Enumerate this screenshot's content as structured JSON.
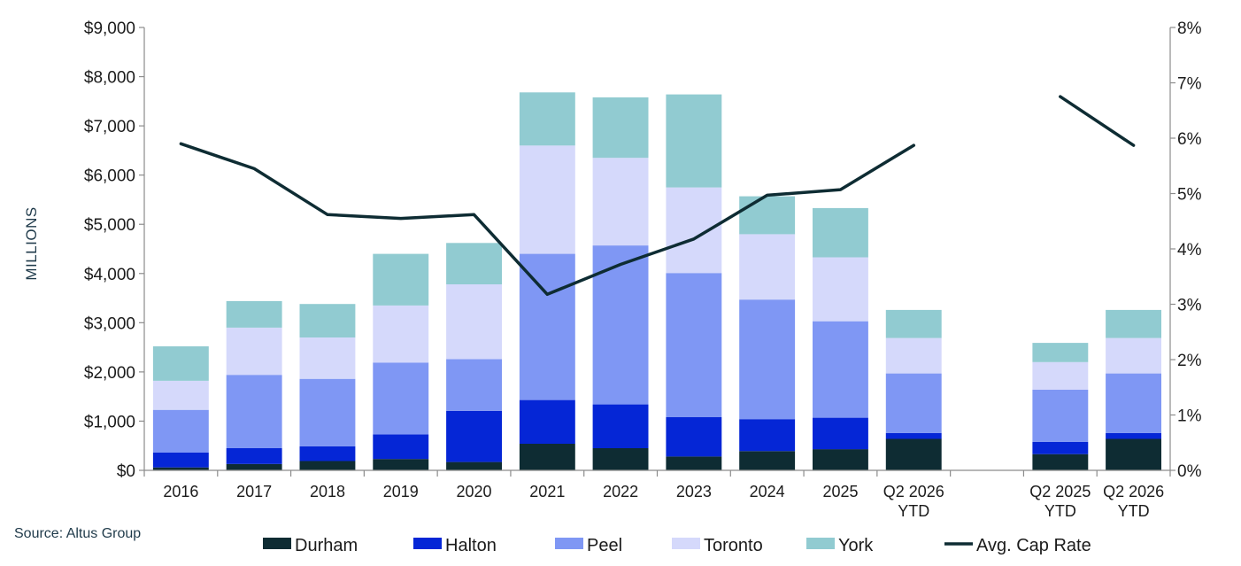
{
  "chart_data": {
    "type": "bar",
    "stacked": true,
    "categories": [
      "2016",
      "2017",
      "2018",
      "2019",
      "2020",
      "2021",
      "2022",
      "2023",
      "2024",
      "2025",
      "Q2 2026\nYTD",
      "",
      "Q2 2025\nYTD",
      "Q2 2026\nYTD"
    ],
    "series": [
      {
        "name": "Durham",
        "color": "#0e2c33",
        "values": [
          60,
          130,
          190,
          230,
          170,
          540,
          450,
          280,
          390,
          430,
          640,
          null,
          330,
          640
        ]
      },
      {
        "name": "Halton",
        "color": "#0526d6",
        "values": [
          300,
          320,
          300,
          500,
          1040,
          890,
          890,
          800,
          650,
          640,
          120,
          null,
          250,
          120
        ]
      },
      {
        "name": "Peel",
        "color": "#7f97f4",
        "values": [
          870,
          1490,
          1370,
          1460,
          1050,
          2970,
          3230,
          2930,
          2430,
          1960,
          1210,
          null,
          1060,
          1210
        ]
      },
      {
        "name": "Toronto",
        "color": "#d5d9fb",
        "values": [
          590,
          960,
          840,
          1160,
          1520,
          2200,
          1780,
          1740,
          1330,
          1300,
          720,
          null,
          560,
          720
        ]
      },
      {
        "name": "York",
        "color": "#91cbd1",
        "values": [
          700,
          540,
          680,
          1050,
          840,
          1080,
          1230,
          1890,
          770,
          1000,
          570,
          null,
          390,
          570
        ]
      }
    ],
    "line": {
      "name": "Avg. Cap Rate",
      "color": "#0e2c33",
      "axis": "right",
      "values": [
        5.9,
        5.45,
        4.62,
        4.55,
        4.62,
        3.18,
        3.72,
        4.18,
        4.97,
        5.07,
        5.87,
        null,
        6.75,
        5.87
      ]
    },
    "ylim": [
      0,
      9000
    ],
    "yticks": [
      "$0",
      "$1,000",
      "$2,000",
      "$3,000",
      "$4,000",
      "$5,000",
      "$6,000",
      "$7,000",
      "$8,000",
      "$9,000"
    ],
    "y2lim": [
      0,
      8
    ],
    "y2ticks": [
      "0%",
      "1%",
      "2%",
      "3%",
      "4%",
      "5%",
      "6%",
      "7%",
      "8%"
    ],
    "ylabel": "MILLIONS",
    "xlabel": "",
    "title": "",
    "grid": false,
    "legend_position": "bottom",
    "source": "Source: Altus Group"
  }
}
